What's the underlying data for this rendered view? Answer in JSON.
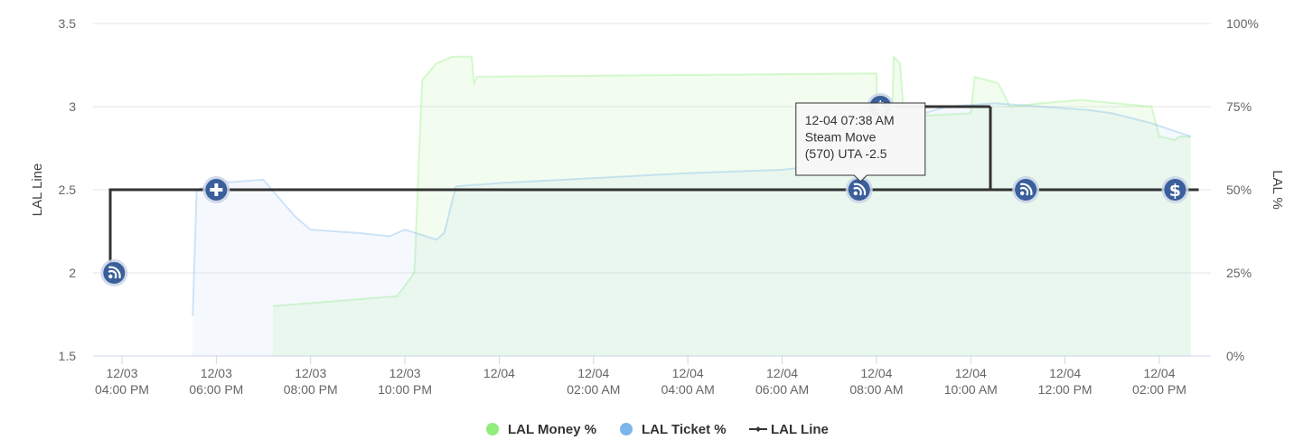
{
  "chart_data": {
    "type": "line",
    "ylabel_left": "LAL Line",
    "ylabel_right": "LAL %",
    "y_left": {
      "min": 1.5,
      "max": 3.5,
      "ticks": [
        "1.5",
        "2",
        "2.5",
        "3",
        "3.5"
      ]
    },
    "y_right": {
      "min": 0,
      "max": 100,
      "ticks": [
        "0%",
        "25%",
        "50%",
        "75%",
        "100%"
      ]
    },
    "x_ticks": [
      {
        "date": "12/03",
        "time": "04:00 PM"
      },
      {
        "date": "12/03",
        "time": "06:00 PM"
      },
      {
        "date": "12/03",
        "time": "08:00 PM"
      },
      {
        "date": "12/03",
        "time": "10:00 PM"
      },
      {
        "date": "12/04",
        "time": ""
      },
      {
        "date": "12/04",
        "time": "02:00 AM"
      },
      {
        "date": "12/04",
        "time": "04:00 AM"
      },
      {
        "date": "12/04",
        "time": "06:00 AM"
      },
      {
        "date": "12/04",
        "time": "08:00 AM"
      },
      {
        "date": "12/04",
        "time": "10:00 AM"
      },
      {
        "date": "12/04",
        "time": "12:00 PM"
      },
      {
        "date": "12/04",
        "time": "02:00 PM"
      }
    ],
    "grid": true,
    "legend_position": "bottom-center",
    "colors": {
      "money": "#90ed7d",
      "ticket": "#7cb5ec",
      "line": "#333333",
      "grid": "#e6e6e6",
      "marker": "#3a5f9a"
    },
    "series": [
      {
        "name": "LAL Money %",
        "axis": "right",
        "type": "area",
        "points": [
          [
            "12/03 07:12 PM",
            15
          ],
          [
            "12/03 09:50 PM",
            18
          ],
          [
            "12/03 10:12 PM",
            25
          ],
          [
            "12/03 10:18 PM",
            60
          ],
          [
            "12/03 10:22 PM",
            83
          ],
          [
            "12/03 10:40 PM",
            88
          ],
          [
            "12/03 11:00 PM",
            90
          ],
          [
            "12/03 11:25 PM",
            90
          ],
          [
            "12/03 11:28 PM",
            82
          ],
          [
            "12/03 11:32 PM",
            84
          ],
          [
            "12/04 08:00 AM",
            85
          ],
          [
            "12/04 08:01 AM",
            72
          ],
          [
            "12/04 08:20 AM",
            73
          ],
          [
            "12/04 08:22 AM",
            90
          ],
          [
            "12/04 08:30 AM",
            88
          ],
          [
            "12/04 08:35 AM",
            72
          ],
          [
            "12/04 10:00 AM",
            73
          ],
          [
            "12/04 10:05 AM",
            84
          ],
          [
            "12/04 10:35 AM",
            82
          ],
          [
            "12/04 10:50 AM",
            75
          ],
          [
            "12/04 11:30 AM",
            76
          ],
          [
            "12/04 12:20 PM",
            77
          ],
          [
            "12/04 01:50 PM",
            75
          ],
          [
            "12/04 02:00 PM",
            66
          ],
          [
            "12/04 02:20 PM",
            65
          ],
          [
            "12/04 02:25 PM",
            66
          ],
          [
            "12/04 02:40 PM",
            66
          ]
        ]
      },
      {
        "name": "LAL Ticket %",
        "axis": "right",
        "type": "area",
        "points": [
          [
            "12/03 05:30 PM",
            12
          ],
          [
            "12/03 05:35 PM",
            50
          ],
          [
            "12/03 06:00 PM",
            52
          ],
          [
            "12/03 07:00 PM",
            53
          ],
          [
            "12/03 07:40 PM",
            42
          ],
          [
            "12/03 08:00 PM",
            38
          ],
          [
            "12/03 09:00 PM",
            37
          ],
          [
            "12/03 09:40 PM",
            36
          ],
          [
            "12/03 10:00 PM",
            38
          ],
          [
            "12/03 10:40 PM",
            35
          ],
          [
            "12/03 10:50 PM",
            37
          ],
          [
            "12/03 11:05 PM",
            51
          ],
          [
            "12/04 12:00 AM",
            52
          ],
          [
            "12/04 04:00 AM",
            55
          ],
          [
            "12/04 06:00 AM",
            56
          ],
          [
            "12/04 08:00 AM",
            59
          ],
          [
            "12/04 08:40 AM",
            66
          ],
          [
            "12/04 09:00 AM",
            73
          ],
          [
            "12/04 09:30 AM",
            75
          ],
          [
            "12/04 10:30 AM",
            76
          ],
          [
            "12/04 11:30 AM",
            75
          ],
          [
            "12/04 12:30 PM",
            74
          ],
          [
            "12/04 01:00 PM",
            73
          ],
          [
            "12/04 01:50 PM",
            70
          ],
          [
            "12/04 02:40 PM",
            66
          ]
        ]
      },
      {
        "name": "LAL Line",
        "axis": "left",
        "type": "step",
        "points": [
          [
            "12/03 03:45 PM",
            2
          ],
          [
            "12/03 03:45 PM",
            2.5
          ],
          [
            "12/04 10:25 AM",
            2.5
          ],
          [
            "12/04 10:25 AM",
            3
          ],
          [
            "12/04 08:00 AM",
            3
          ]
        ],
        "line_path": [
          [
            "12/03 03:45 PM",
            2
          ],
          [
            "12/03 03:45 PM",
            2.5
          ],
          [
            "12/04 10:25 AM",
            2.5
          ]
        ],
        "step_segments": [
          {
            "from": [
              "12/04 08:05 AM",
              3
            ],
            "to": [
              "12/04 10:25 AM",
              3
            ]
          },
          {
            "from": [
              "12/04 10:25 AM",
              3
            ],
            "to": [
              "12/04 10:25 AM",
              2.5
            ]
          },
          {
            "from": [
              "12/04 10:25 AM",
              2.5
            ],
            "to": [
              "12/04 02:50 PM",
              2.5
            ]
          }
        ]
      }
    ],
    "markers": [
      {
        "time": "12/03 03:50 PM",
        "value": 2,
        "icon": "rss-icon"
      },
      {
        "time": "12/03 06:00 PM",
        "value": 2.5,
        "icon": "plus-icon"
      },
      {
        "time": "12/04 07:38 AM",
        "value": 2.5,
        "icon": "rss-icon"
      },
      {
        "time": "12/04 08:05 AM",
        "value": 3,
        "icon": "dollar-icon"
      },
      {
        "time": "12/04 11:10 AM",
        "value": 2.5,
        "icon": "rss-icon"
      },
      {
        "time": "12/04 02:20 PM",
        "value": 2.5,
        "icon": "dollar-icon"
      }
    ],
    "tooltip": {
      "lines": [
        "12-04 07:38 AM",
        "Steam Move",
        "(570) UTA -2.5"
      ],
      "anchor_time": "12/04 07:38 AM",
      "anchor_value": 2.5
    },
    "legend": [
      {
        "label": "LAL Money %",
        "symbol": "dot",
        "color": "#90ed7d"
      },
      {
        "label": "LAL Ticket %",
        "symbol": "dot",
        "color": "#7cb5ec"
      },
      {
        "label": "LAL Line",
        "symbol": "line",
        "color": "#333333"
      }
    ]
  }
}
